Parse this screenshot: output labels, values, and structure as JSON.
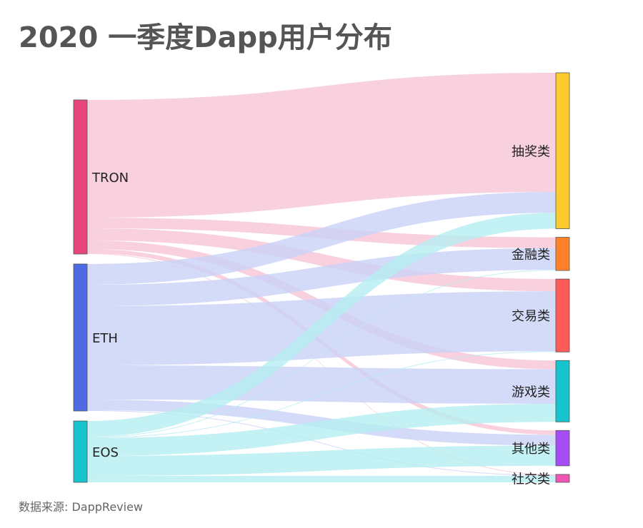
{
  "title": "2020 一季度Dapp用户分布",
  "source": "数据来源: DappReview",
  "chart_data": {
    "type": "sankey",
    "title": "2020 一季度Dapp用户分布",
    "sources": [
      {
        "name": "TRON",
        "color": "#E8457A",
        "link_color": "#F7C6D6"
      },
      {
        "name": "ETH",
        "color": "#4E6BE3",
        "link_color": "#C9D2F7"
      },
      {
        "name": "EOS",
        "color": "#17C2CC",
        "link_color": "#B5EDF0"
      }
    ],
    "targets": [
      {
        "name": "抽奖类",
        "color": "#FDCB2E"
      },
      {
        "name": "金融类",
        "color": "#FF8228"
      },
      {
        "name": "交易类",
        "color": "#FF5B5B"
      },
      {
        "name": "游戏类",
        "color": "#16C4D0"
      },
      {
        "name": "其他类",
        "color": "#A74DF5"
      },
      {
        "name": "社交类",
        "color": "#F055B4"
      }
    ],
    "links": [
      {
        "source": "TRON",
        "target": "抽奖类",
        "value": 165
      },
      {
        "source": "TRON",
        "target": "金融类",
        "value": 15
      },
      {
        "source": "TRON",
        "target": "交易类",
        "value": 17
      },
      {
        "source": "TRON",
        "target": "游戏类",
        "value": 12
      },
      {
        "source": "TRON",
        "target": "其他类",
        "value": 6
      },
      {
        "source": "TRON",
        "target": "社交类",
        "value": 1
      },
      {
        "source": "ETH",
        "target": "抽奖类",
        "value": 29
      },
      {
        "source": "ETH",
        "target": "金融类",
        "value": 30
      },
      {
        "source": "ETH",
        "target": "交易类",
        "value": 83
      },
      {
        "source": "ETH",
        "target": "游戏类",
        "value": 48
      },
      {
        "source": "ETH",
        "target": "其他类",
        "value": 15
      },
      {
        "source": "ETH",
        "target": "社交类",
        "value": 1
      },
      {
        "source": "EOS",
        "target": "抽奖类",
        "value": 22
      },
      {
        "source": "EOS",
        "target": "金融类",
        "value": 1
      },
      {
        "source": "EOS",
        "target": "交易类",
        "value": 1
      },
      {
        "source": "EOS",
        "target": "游戏类",
        "value": 25
      },
      {
        "source": "EOS",
        "target": "其他类",
        "value": 28
      },
      {
        "source": "EOS",
        "target": "社交类",
        "value": 9
      }
    ]
  }
}
